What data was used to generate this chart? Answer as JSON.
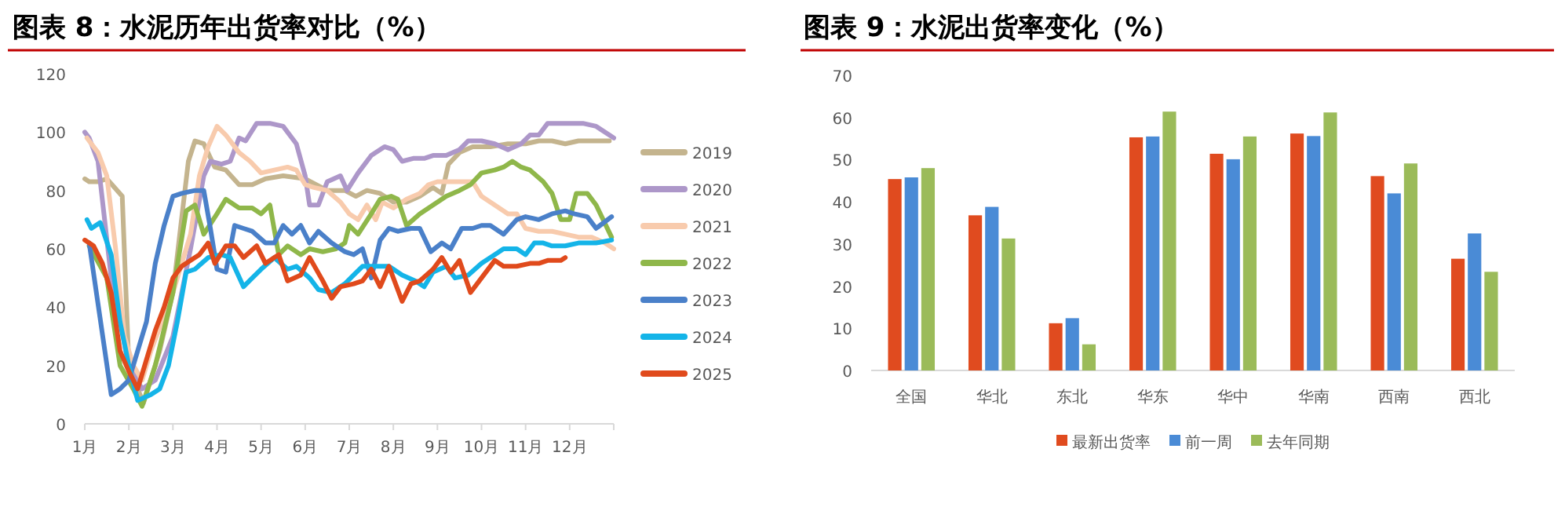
{
  "chart_data": [
    {
      "type": "line",
      "title": "图表 8：水泥历年出货率对比（%）",
      "xlim": [
        1,
        13
      ],
      "xticks": [
        {
          "value": 1,
          "label": "1月"
        },
        {
          "value": 2,
          "label": "2月"
        },
        {
          "value": 3,
          "label": "3月"
        },
        {
          "value": 4,
          "label": "4月"
        },
        {
          "value": 5,
          "label": "5月"
        },
        {
          "value": 6,
          "label": "6月"
        },
        {
          "value": 7,
          "label": "7月"
        },
        {
          "value": 8,
          "label": "8月"
        },
        {
          "value": 9,
          "label": "9月"
        },
        {
          "value": 10,
          "label": "10月"
        },
        {
          "value": 11,
          "label": "11月"
        },
        {
          "value": 12,
          "label": "12月"
        }
      ],
      "ylim": [
        0,
        120
      ],
      "yticks": [
        0,
        20,
        40,
        60,
        80,
        100,
        120
      ],
      "legend": "right",
      "grid": false,
      "series": [
        {
          "name": "2019",
          "color": "#c4b48e",
          "x": [
            1.0,
            1.1,
            1.3,
            1.5,
            1.85,
            2.0,
            2.33,
            2.7,
            3.0,
            3.35,
            3.5,
            3.7,
            3.95,
            4.2,
            4.5,
            4.8,
            5.1,
            5.5,
            6.0,
            6.5,
            6.9,
            7.15,
            7.4,
            7.7,
            8.0,
            8.3,
            8.6,
            8.9,
            9.1,
            9.25,
            9.5,
            9.8,
            10.2,
            10.6,
            11.0,
            11.3,
            11.6,
            11.9,
            12.2,
            12.6,
            12.9
          ],
          "values": [
            84,
            83,
            83,
            84,
            78,
            20,
            7,
            25,
            45,
            90,
            97,
            96,
            88,
            87,
            82,
            82,
            84,
            85,
            84,
            80,
            80,
            78,
            80,
            79,
            76,
            76,
            78,
            81,
            79,
            89,
            93,
            95,
            95,
            96,
            96,
            97,
            97,
            96,
            97,
            97,
            97
          ]
        },
        {
          "name": "2020",
          "color": "#ad97c9",
          "x": [
            1.0,
            1.1,
            1.3,
            1.6,
            2.0,
            2.3,
            2.6,
            3.0,
            3.4,
            3.7,
            3.85,
            4.1,
            4.3,
            4.5,
            4.65,
            4.9,
            5.2,
            5.5,
            5.8,
            6.0,
            6.1,
            6.3,
            6.5,
            6.8,
            6.95,
            7.2,
            7.5,
            7.8,
            8.0,
            8.2,
            8.45,
            8.7,
            8.9,
            9.2,
            9.5,
            9.7,
            10.0,
            10.3,
            10.6,
            10.9,
            11.1,
            11.3,
            11.5,
            11.8,
            12.0,
            12.3,
            12.6,
            12.9,
            13.0
          ],
          "values": [
            100,
            98,
            90,
            50,
            20,
            12,
            15,
            30,
            60,
            85,
            90,
            89,
            90,
            98,
            97,
            103,
            103,
            102,
            96,
            85,
            75,
            75,
            83,
            85,
            80,
            86,
            92,
            95,
            94,
            90,
            91,
            91,
            92,
            92,
            94,
            97,
            97,
            96,
            94,
            96,
            99,
            99,
            103,
            103,
            103,
            103,
            102,
            99,
            98
          ]
        },
        {
          "name": "2021",
          "color": "#f8cbad",
          "x": [
            1.05,
            1.3,
            1.5,
            1.7,
            1.9,
            2.1,
            2.3,
            2.5,
            3.0,
            3.4,
            3.6,
            3.8,
            4.0,
            4.2,
            4.5,
            4.75,
            5.0,
            5.3,
            5.6,
            5.8,
            6.0,
            6.2,
            6.5,
            6.8,
            7.0,
            7.2,
            7.4,
            7.6,
            7.75,
            8.0,
            8.3,
            8.6,
            8.8,
            9.0,
            9.3,
            9.6,
            9.8,
            10.0,
            10.3,
            10.6,
            10.8,
            11.0,
            11.3,
            11.6,
            11.9,
            12.2,
            12.5,
            12.8,
            13.0
          ],
          "values": [
            98,
            93,
            85,
            60,
            30,
            20,
            15,
            25,
            45,
            65,
            85,
            95,
            102,
            99,
            93,
            90,
            86,
            87,
            88,
            87,
            82,
            81,
            80,
            76,
            72,
            70,
            75,
            70,
            76,
            74,
            77,
            79,
            82,
            83,
            83,
            83,
            83,
            78,
            75,
            72,
            72,
            67,
            66,
            66,
            65,
            64,
            64,
            62,
            60
          ]
        },
        {
          "name": "2022",
          "color": "#8fb74a",
          "x": [
            1.1,
            1.5,
            1.8,
            2.1,
            2.3,
            2.6,
            3.0,
            3.3,
            3.5,
            3.7,
            4.0,
            4.2,
            4.5,
            4.8,
            5.0,
            5.2,
            5.4,
            5.6,
            5.9,
            6.1,
            6.4,
            6.7,
            6.9,
            7.0,
            7.2,
            7.5,
            7.7,
            7.95,
            8.1,
            8.3,
            8.6,
            8.9,
            9.2,
            9.5,
            9.75,
            10.0,
            10.3,
            10.5,
            10.7,
            10.9,
            11.1,
            11.4,
            11.6,
            11.8,
            12.0,
            12.15,
            12.4,
            12.6,
            12.95
          ],
          "values": [
            61,
            50,
            20,
            12,
            6,
            20,
            45,
            73,
            75,
            65,
            72,
            77,
            74,
            74,
            72,
            75,
            58,
            61,
            58,
            60,
            59,
            60,
            62,
            68,
            65,
            72,
            77,
            78,
            77,
            68,
            72,
            75,
            78,
            80,
            82,
            86,
            87,
            88,
            90,
            88,
            87,
            83,
            79,
            70,
            70,
            79,
            79,
            75,
            64
          ]
        },
        {
          "name": "2023",
          "color": "#4a80c9",
          "x": [
            1.1,
            1.6,
            1.8,
            2.0,
            2.2,
            2.4,
            2.6,
            2.8,
            3.0,
            3.2,
            3.5,
            3.7,
            3.85,
            4.0,
            4.2,
            4.4,
            4.6,
            4.8,
            5.1,
            5.3,
            5.5,
            5.7,
            5.9,
            6.1,
            6.3,
            6.6,
            6.9,
            7.1,
            7.3,
            7.5,
            7.7,
            7.9,
            8.1,
            8.4,
            8.6,
            8.85,
            9.1,
            9.3,
            9.55,
            9.8,
            10.0,
            10.2,
            10.5,
            10.8,
            11.0,
            11.3,
            11.6,
            11.9,
            12.1,
            12.4,
            12.6,
            12.95
          ],
          "values": [
            62,
            10,
            12,
            15,
            25,
            35,
            55,
            68,
            78,
            79,
            80,
            80,
            67,
            53,
            52,
            68,
            67,
            66,
            62,
            62,
            68,
            65,
            68,
            62,
            66,
            62,
            59,
            58,
            60,
            50,
            63,
            67,
            66,
            67,
            67,
            59,
            62,
            60,
            67,
            67,
            68,
            68,
            65,
            70,
            71,
            70,
            72,
            73,
            72,
            71,
            67,
            71
          ]
        },
        {
          "name": "2024",
          "color": "#14b4e8",
          "x": [
            1.05,
            1.15,
            1.35,
            1.6,
            1.8,
            2.0,
            2.2,
            2.5,
            2.7,
            2.9,
            3.1,
            3.3,
            3.5,
            3.8,
            4.1,
            4.3,
            4.6,
            4.8,
            5.0,
            5.3,
            5.6,
            5.8,
            6.1,
            6.3,
            6.6,
            6.9,
            7.1,
            7.3,
            7.6,
            7.9,
            8.2,
            8.5,
            8.7,
            8.9,
            9.2,
            9.4,
            9.7,
            10.0,
            10.3,
            10.5,
            10.8,
            11.0,
            11.2,
            11.4,
            11.6,
            11.9,
            12.2,
            12.6,
            12.95
          ],
          "values": [
            70,
            67,
            69,
            58,
            35,
            20,
            8,
            10,
            12,
            20,
            35,
            52,
            53,
            57,
            58,
            57,
            47,
            50,
            53,
            57,
            53,
            54,
            50,
            46,
            45,
            48,
            51,
            54,
            54,
            54,
            51,
            49,
            47,
            52,
            54,
            50,
            51,
            55,
            58,
            60,
            60,
            58,
            62,
            62,
            61,
            61,
            62,
            62,
            63
          ]
        },
        {
          "name": "2025",
          "color": "#e04a1c",
          "x": [
            1.0,
            1.2,
            1.4,
            1.6,
            1.8,
            2.0,
            2.2,
            2.4,
            2.6,
            2.8,
            3.0,
            3.2,
            3.4,
            3.6,
            3.8,
            3.95,
            4.2,
            4.4,
            4.6,
            4.9,
            5.1,
            5.4,
            5.6,
            5.9,
            6.1,
            6.4,
            6.6,
            6.8,
            7.1,
            7.3,
            7.5,
            7.7,
            7.9,
            8.2,
            8.4,
            8.6,
            8.9,
            9.1,
            9.3,
            9.5,
            9.75,
            10.0,
            10.3,
            10.5,
            10.8,
            11.1,
            11.3,
            11.5,
            11.8,
            11.9
          ],
          "values": [
            63,
            61,
            55,
            45,
            25,
            18,
            12,
            22,
            32,
            40,
            50,
            54,
            56,
            58,
            62,
            55,
            61,
            61,
            57,
            61,
            55,
            58,
            49,
            51,
            57,
            49,
            43,
            47,
            48,
            49,
            53,
            47,
            54,
            42,
            48,
            49,
            53,
            57,
            52,
            56,
            45,
            50,
            56,
            54,
            54,
            55,
            55,
            56,
            56,
            57
          ]
        }
      ]
    },
    {
      "type": "bar",
      "title": "图表 9：水泥出货率变化（%）",
      "categories": [
        "全国",
        "华北",
        "东北",
        "华东",
        "华中",
        "华南",
        "西南",
        "西北"
      ],
      "ylim": [
        0,
        70
      ],
      "yticks": [
        0,
        10,
        20,
        30,
        40,
        50,
        60,
        70
      ],
      "legend": "bottom",
      "grid": false,
      "series": [
        {
          "name": "最新出货率",
          "color": "#e04b1f",
          "values": [
            45.4,
            36.8,
            11.2,
            55.3,
            51.4,
            56.2,
            46.1,
            26.5
          ]
        },
        {
          "name": "前一周",
          "color": "#4a8bd6",
          "values": [
            45.8,
            38.8,
            12.4,
            55.5,
            50.1,
            55.6,
            42.0,
            32.5
          ]
        },
        {
          "name": "去年同期",
          "color": "#9bbb59",
          "values": [
            48.0,
            31.3,
            6.2,
            61.4,
            55.5,
            61.2,
            49.1,
            23.4
          ]
        }
      ]
    }
  ]
}
